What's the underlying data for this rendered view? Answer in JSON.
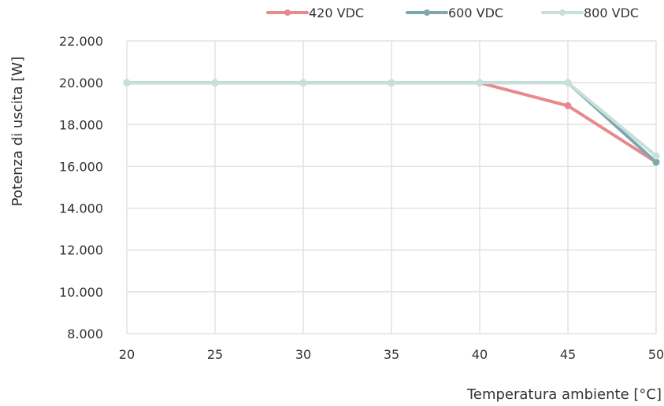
{
  "chart_data": {
    "type": "line",
    "x": [
      20,
      25,
      30,
      35,
      40,
      45,
      50
    ],
    "x_tick_labels": [
      "20",
      "25",
      "30",
      "35",
      "40",
      "45",
      "50"
    ],
    "y_tick_labels": [
      "8.000",
      "10.000",
      "12.000",
      "14.000",
      "16.000",
      "18.000",
      "20.000",
      "22.000"
    ],
    "ylim": [
      8000,
      22000
    ],
    "xlabel": "Temperatura ambiente [°C]",
    "ylabel": "Potenza di uscita [W]",
    "grid": true,
    "legend_position": "top-right",
    "series": [
      {
        "name": "420 VDC",
        "color": "#e8898e",
        "values": [
          20000,
          20000,
          20000,
          20000,
          20000,
          18900,
          16200
        ]
      },
      {
        "name": "600 VDC",
        "color": "#7fa8ae",
        "values": [
          20000,
          20000,
          20000,
          20000,
          20000,
          20000,
          16200
        ]
      },
      {
        "name": "800 VDC",
        "color": "#c8e0da",
        "values": [
          20000,
          20000,
          20000,
          20000,
          20000,
          20000,
          16500
        ]
      }
    ]
  }
}
